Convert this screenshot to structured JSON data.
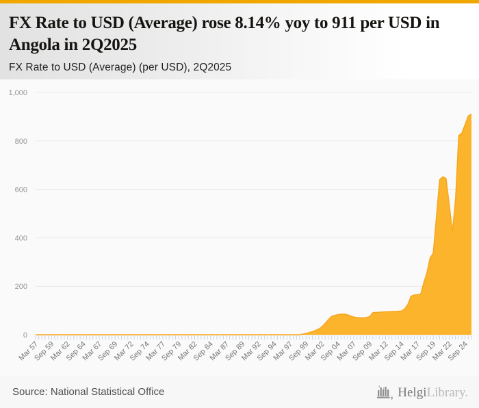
{
  "header": {
    "title": "FX Rate to USD (Average) rose 8.14% yoy to 911 per USD in Angola in 2Q2025",
    "subtitle": "FX Rate to USD (Average) (per USD), 2Q2025",
    "accent_color": "#F1A702"
  },
  "chart_data": {
    "type": "area",
    "title": "FX Rate to USD (Average) (per USD), 2Q2025",
    "series_name": "FX Rate to USD (Average)",
    "unit": "per USD",
    "country": "Angola",
    "frequency": "semiannual (Mar/Sep)",
    "start_period": "Mar 1957",
    "end_period": "2Q2025",
    "latest_value": 911,
    "yoy_change_pct": 8.14,
    "ylim": [
      0,
      1000
    ],
    "y_ticks": [
      0,
      200,
      400,
      600,
      800,
      1000
    ],
    "y_tick_labels": [
      "0",
      "200",
      "400",
      "600",
      "800",
      "1,000"
    ],
    "x_tick_labels": [
      "Mar 57",
      "Sep 59",
      "Mar 62",
      "Sep 64",
      "Mar 67",
      "Sep 69",
      "Mar 72",
      "Sep 74",
      "Mar 77",
      "Sep 79",
      "Mar 82",
      "Sep 84",
      "Mar 87",
      "Sep 89",
      "Mar 92",
      "Sep 94",
      "Mar 97",
      "Sep 99",
      "Mar 02",
      "Sep 04",
      "Mar 07",
      "Sep 09",
      "Mar 12",
      "Sep 14",
      "Mar 17",
      "Sep 19",
      "Mar 22",
      "Sep 24"
    ],
    "x_label_every_n_points": 5,
    "grid": true,
    "legend": false,
    "fill_color": "#FCB42D",
    "line_color": "#F6A71F",
    "tick_color": "#c9d1e4",
    "grid_color": "#e8e8e8",
    "values": [
      0,
      0,
      0,
      0,
      0,
      0,
      0,
      0,
      0,
      0,
      0,
      0,
      0,
      0,
      0,
      0,
      0,
      0,
      0,
      0,
      0,
      0,
      0,
      0,
      0,
      0,
      0,
      0,
      0,
      0,
      0,
      0,
      0,
      0,
      0,
      0,
      0,
      0,
      0,
      0,
      0,
      0,
      0,
      0,
      0,
      0,
      0,
      0,
      0,
      0,
      0,
      0,
      0,
      0,
      0,
      0,
      0,
      0,
      0,
      0,
      0,
      0,
      0,
      0,
      0,
      0,
      0,
      0,
      0,
      0,
      0,
      0,
      0,
      0,
      0,
      0,
      0,
      0,
      0,
      0,
      0,
      0,
      0,
      0,
      2.8,
      5.6,
      9,
      13,
      18,
      24,
      33,
      47,
      62,
      76,
      80,
      83,
      85,
      85,
      83,
      78,
      73,
      71,
      70,
      70,
      71,
      75,
      91,
      92,
      93,
      94,
      95,
      95,
      96,
      96,
      97,
      98,
      107,
      125,
      159,
      164,
      166,
      166,
      214,
      256,
      317,
      338,
      489,
      640,
      652,
      645,
      540,
      425,
      560,
      822,
      833,
      868,
      903,
      911
    ]
  },
  "footer": {
    "source": "Source: National Statistical Office",
    "logo": {
      "icon": "helgi-building-icon",
      "text_primary": "Helgi",
      "text_secondary": "Library."
    }
  }
}
